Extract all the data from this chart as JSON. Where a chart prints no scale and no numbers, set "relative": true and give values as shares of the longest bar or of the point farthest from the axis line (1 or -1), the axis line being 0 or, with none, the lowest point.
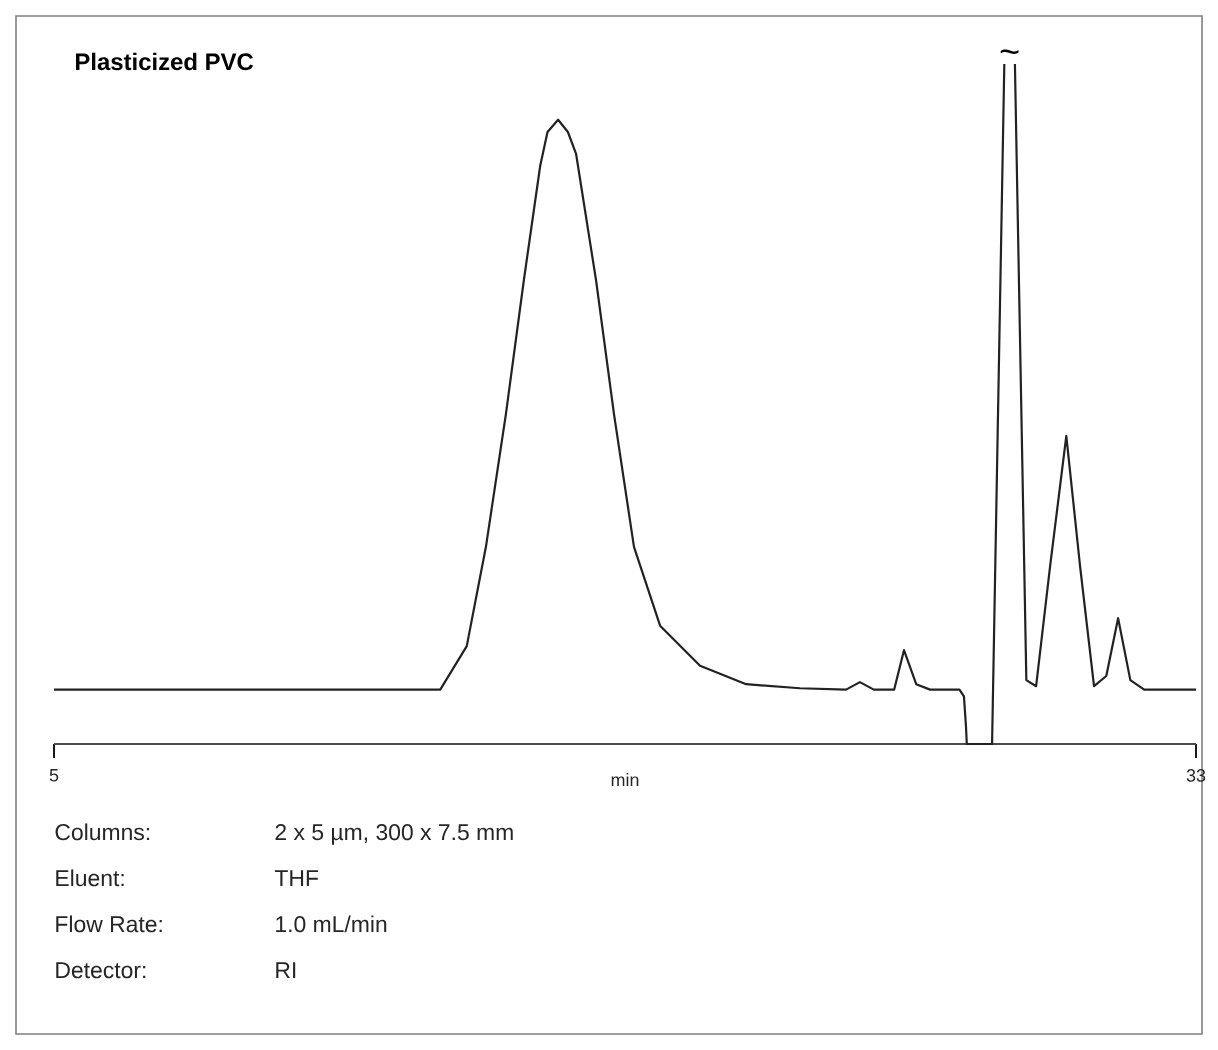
{
  "chart_data": {
    "type": "line",
    "title": "Plasticized PVC",
    "xlabel": "min",
    "relative": true,
    "tick_labels": "x",
    "marker": "none",
    "line_style": "solid",
    "xlim": [
      5,
      33
    ],
    "xticks": [
      5,
      33
    ],
    "color": "#222222",
    "x": [
      5,
      14.47,
      15.12,
      15.59,
      16.08,
      16.52,
      16.92,
      17.1,
      17.36,
      17.6,
      17.8,
      18.29,
      18.73,
      19.22,
      19.86,
      20.84,
      21.97,
      23.29,
      24.42,
      24.76,
      25.1,
      25.6,
      25.84,
      26.14,
      26.48,
      27.2,
      27.31,
      27.36,
      27.38,
      28.0,
      28.3,
      28.43,
      28.56,
      28.84,
      29.08,
      29.42,
      29.82,
      30.16,
      30.5,
      30.8,
      31.09,
      31.39,
      31.73,
      33
    ],
    "values": [
      0.08,
      0.08,
      0.144,
      0.29,
      0.485,
      0.682,
      0.85,
      0.9,
      0.918,
      0.9,
      0.868,
      0.682,
      0.485,
      0.29,
      0.174,
      0.115,
      0.088,
      0.082,
      0.08,
      0.091,
      0.08,
      0.08,
      0.138,
      0.088,
      0.08,
      0.08,
      0.07,
      0.026,
      0,
      0,
      1,
      null,
      1,
      0.094,
      0.085,
      0.26,
      0.453,
      0.26,
      0.085,
      0.1,
      0.185,
      0.094,
      0.08,
      0.08
    ],
    "annotations": [
      {
        "text": "~",
        "x": 28.43,
        "y": 1
      },
      "Columns:",
      "2 x 5 µm, 300 x 7.5 mm",
      "Eluent:",
      "THF",
      "Flow Rate:",
      "1.0 mL/min",
      "Detector:",
      "RI"
    ]
  }
}
